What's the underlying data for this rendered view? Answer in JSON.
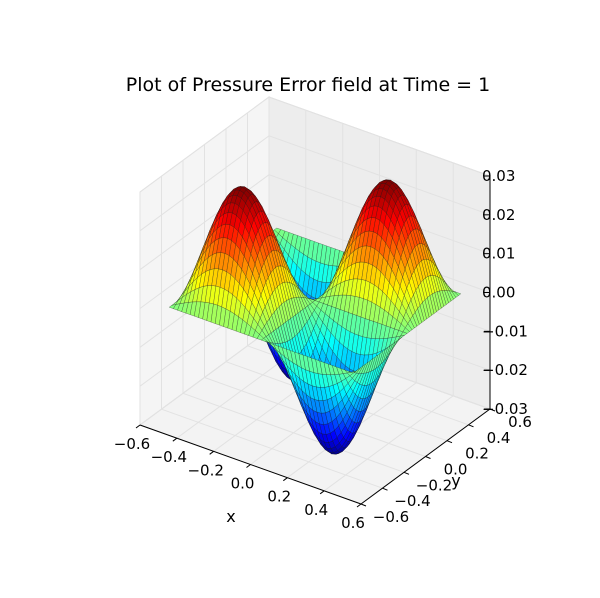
{
  "chart_data": {
    "type": "surface",
    "title": "Plot of Pressure Error field at Time = 1",
    "xlabel": "x",
    "ylabel": "y",
    "zlabel": "",
    "xlim": [
      -0.6,
      0.6
    ],
    "ylim": [
      -0.6,
      0.6
    ],
    "zlim": [
      -0.03,
      0.03
    ],
    "x_ticks": [
      "−0.6",
      "−0.4",
      "−0.2",
      "0.0",
      "0.2",
      "0.4",
      "0.6"
    ],
    "y_ticks": [
      "−0.6",
      "−0.4",
      "−0.2",
      "0.0",
      "0.2",
      "0.4",
      "0.6"
    ],
    "z_ticks": [
      "−0.03",
      "−0.02",
      "−0.01",
      "0.00",
      "0.01",
      "0.02",
      "0.03"
    ],
    "surface": "z = 0.03 * sin(2*pi*x) * sin(2*pi*y)",
    "domain": [
      -0.5,
      0.5
    ],
    "grid": true,
    "colormap": "jet",
    "pane_color": "#f2f2f2",
    "grid_color": "#e2e2e2"
  }
}
